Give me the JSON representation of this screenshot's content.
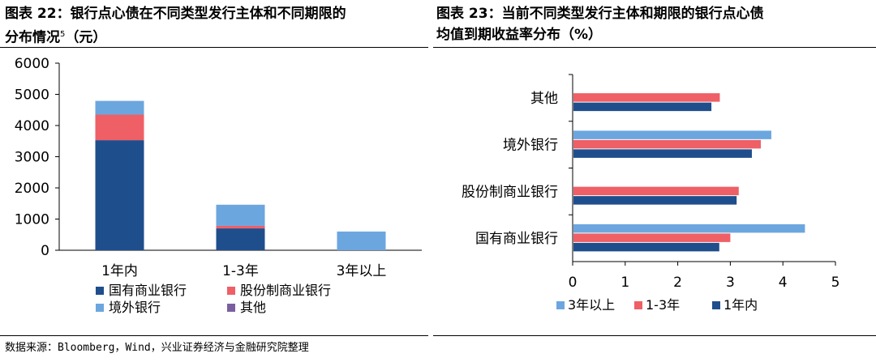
{
  "titles": {
    "left_line1": "图表 22：银行点心债在不同类型发行主体和不同期限的",
    "left_line2": "分布情况",
    "left_footnote": "5",
    "left_line2_suffix": "（元）",
    "right_line1": "图表 23：当前不同类型发行主体和期限的银行点心债",
    "right_line2": "均值到期收益率分布（%）"
  },
  "source": "数据来源：Bloomberg，Wind，兴业证券经济与金融研究院整理",
  "colors": {
    "国有商业银行": "#1f4e8c",
    "股份制商业银行": "#ee5f66",
    "境外银行": "#6ca6df",
    "其他": "#7a5fa0"
  },
  "chart_data": [
    {
      "type": "bar",
      "stacked": true,
      "categories": [
        "1年内",
        "1-3年",
        "3年以上"
      ],
      "series": [
        {
          "name": "国有商业银行",
          "values": [
            3530,
            700,
            0
          ]
        },
        {
          "name": "股份制商业银行",
          "values": [
            820,
            80,
            0
          ]
        },
        {
          "name": "境外银行",
          "values": [
            440,
            680,
            600
          ]
        },
        {
          "name": "其他",
          "values": [
            0,
            0,
            0
          ]
        }
      ],
      "ylim": [
        0,
        6000
      ],
      "yticks": [
        "0",
        "1000",
        "2000",
        "3000",
        "4000",
        "5000",
        "6000"
      ],
      "legend": "bottom",
      "grid": false
    },
    {
      "type": "bar",
      "orientation": "horizontal",
      "categories": [
        "其他",
        "境外银行",
        "股份制商业银行",
        "国有商业银行"
      ],
      "series": [
        {
          "name": "3年以上",
          "values": [
            null,
            3.78,
            null,
            4.42
          ]
        },
        {
          "name": "1-3年",
          "values": [
            2.8,
            3.58,
            3.16,
            3.0
          ]
        },
        {
          "name": "1年内",
          "values": [
            2.64,
            3.41,
            3.12,
            2.79
          ]
        }
      ],
      "xlim": [
        0,
        5
      ],
      "xticks": [
        "0",
        "1",
        "2",
        "3",
        "4",
        "5"
      ],
      "legend": "bottom",
      "grid": false
    }
  ]
}
